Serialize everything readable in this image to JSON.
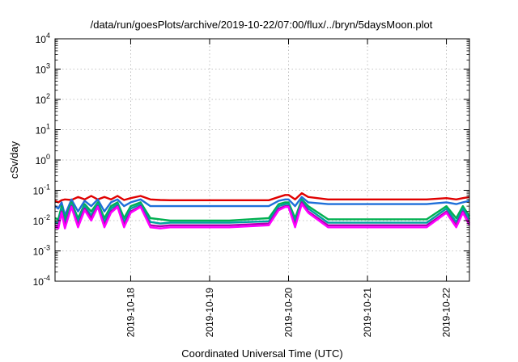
{
  "chart_data": {
    "type": "line",
    "title": "/data/run/goesPlots/archive/2019-10-22/07:00/flux/../bryn/5daysMoon.plot",
    "xlabel": "Coordinated Universal Time (UTC)",
    "ylabel": "cSv/day",
    "yscale": "log",
    "ylim": [
      0.0001,
      10000
    ],
    "xlim": [
      "2019-10-17 01:00",
      "2019-10-22 07:00"
    ],
    "grid": true,
    "y_ticks": [
      {
        "base": "10",
        "exp": "4"
      },
      {
        "base": "10",
        "exp": "3"
      },
      {
        "base": "10",
        "exp": "2"
      },
      {
        "base": "10",
        "exp": "1"
      },
      {
        "base": "10",
        "exp": "0"
      },
      {
        "base": "10",
        "exp": "-1"
      },
      {
        "base": "10",
        "exp": "-2"
      },
      {
        "base": "10",
        "exp": "-3"
      },
      {
        "base": "10",
        "exp": "-4"
      }
    ],
    "x_ticks": [
      "2019-10-18",
      "2019-10-19",
      "2019-10-20",
      "2019-10-21",
      "2019-10-22"
    ],
    "series": [
      {
        "color": "#e00000",
        "x": [
          "2019-10-17 01:00",
          "2019-10-17 02:00",
          "2019-10-17 03:00",
          "2019-10-17 04:00",
          "2019-10-17 06:00",
          "2019-10-17 08:00",
          "2019-10-17 10:00",
          "2019-10-17 12:00",
          "2019-10-17 14:00",
          "2019-10-17 16:00",
          "2019-10-17 18:00",
          "2019-10-17 20:00",
          "2019-10-17 22:00",
          "2019-10-18 00:00",
          "2019-10-18 03:00",
          "2019-10-18 06:00",
          "2019-10-18 09:00",
          "2019-10-18 12:00",
          "2019-10-18 18:00",
          "2019-10-19 00:00",
          "2019-10-19 06:00",
          "2019-10-19 12:00",
          "2019-10-19 18:00",
          "2019-10-19 21:00",
          "2019-10-19 23:00",
          "2019-10-20 00:00",
          "2019-10-20 02:00",
          "2019-10-20 04:00",
          "2019-10-20 06:00",
          "2019-10-20 12:00",
          "2019-10-20 18:00",
          "2019-10-21 00:00",
          "2019-10-21 06:00",
          "2019-10-21 12:00",
          "2019-10-21 18:00",
          "2019-10-22 00:00",
          "2019-10-22 03:00",
          "2019-10-22 05:00",
          "2019-10-22 07:00"
        ],
        "y": [
          0.045,
          0.04,
          0.047,
          0.05,
          0.048,
          0.06,
          0.05,
          0.065,
          0.05,
          0.06,
          0.05,
          0.065,
          0.048,
          0.055,
          0.065,
          0.05,
          0.048,
          0.047,
          0.047,
          0.047,
          0.047,
          0.047,
          0.047,
          0.06,
          0.07,
          0.07,
          0.05,
          0.08,
          0.06,
          0.05,
          0.05,
          0.05,
          0.05,
          0.05,
          0.05,
          0.055,
          0.05,
          0.055,
          0.06
        ]
      },
      {
        "color": "#1e6fd9",
        "x": [
          "2019-10-17 01:00",
          "2019-10-17 02:00",
          "2019-10-17 03:00",
          "2019-10-17 04:00",
          "2019-10-17 06:00",
          "2019-10-17 08:00",
          "2019-10-17 10:00",
          "2019-10-17 12:00",
          "2019-10-17 14:00",
          "2019-10-17 16:00",
          "2019-10-17 18:00",
          "2019-10-17 20:00",
          "2019-10-17 22:00",
          "2019-10-18 00:00",
          "2019-10-18 03:00",
          "2019-10-18 06:00",
          "2019-10-18 09:00",
          "2019-10-18 12:00",
          "2019-10-18 18:00",
          "2019-10-19 00:00",
          "2019-10-19 06:00",
          "2019-10-19 12:00",
          "2019-10-19 18:00",
          "2019-10-19 21:00",
          "2019-10-19 23:00",
          "2019-10-20 00:00",
          "2019-10-20 02:00",
          "2019-10-20 04:00",
          "2019-10-20 06:00",
          "2019-10-20 12:00",
          "2019-10-20 18:00",
          "2019-10-21 00:00",
          "2019-10-21 06:00",
          "2019-10-21 12:00",
          "2019-10-21 18:00",
          "2019-10-22 00:00",
          "2019-10-22 03:00",
          "2019-10-22 05:00",
          "2019-10-22 07:00"
        ],
        "y": [
          0.03,
          0.025,
          0.04,
          0.015,
          0.05,
          0.02,
          0.045,
          0.03,
          0.05,
          0.02,
          0.04,
          0.05,
          0.03,
          0.04,
          0.05,
          0.03,
          0.03,
          0.03,
          0.03,
          0.03,
          0.03,
          0.03,
          0.03,
          0.045,
          0.05,
          0.05,
          0.03,
          0.06,
          0.04,
          0.035,
          0.035,
          0.035,
          0.035,
          0.035,
          0.035,
          0.04,
          0.035,
          0.04,
          0.045
        ]
      },
      {
        "color": "#00b050",
        "x": [
          "2019-10-17 01:00",
          "2019-10-17 02:00",
          "2019-10-17 03:00",
          "2019-10-17 04:00",
          "2019-10-17 06:00",
          "2019-10-17 08:00",
          "2019-10-17 10:00",
          "2019-10-17 12:00",
          "2019-10-17 14:00",
          "2019-10-17 16:00",
          "2019-10-17 18:00",
          "2019-10-17 20:00",
          "2019-10-17 22:00",
          "2019-10-18 00:00",
          "2019-10-18 03:00",
          "2019-10-18 06:00",
          "2019-10-18 09:00",
          "2019-10-18 12:00",
          "2019-10-18 18:00",
          "2019-10-19 00:00",
          "2019-10-19 06:00",
          "2019-10-19 12:00",
          "2019-10-19 18:00",
          "2019-10-19 21:00",
          "2019-10-19 23:00",
          "2019-10-20 00:00",
          "2019-10-20 02:00",
          "2019-10-20 04:00",
          "2019-10-20 06:00",
          "2019-10-20 12:00",
          "2019-10-20 18:00",
          "2019-10-21 00:00",
          "2019-10-21 06:00",
          "2019-10-21 12:00",
          "2019-10-21 18:00",
          "2019-10-22 00:00",
          "2019-10-22 03:00",
          "2019-10-22 05:00",
          "2019-10-22 07:00"
        ],
        "y": [
          0.012,
          0.011,
          0.03,
          0.011,
          0.04,
          0.012,
          0.035,
          0.02,
          0.04,
          0.012,
          0.03,
          0.04,
          0.012,
          0.03,
          0.04,
          0.012,
          0.011,
          0.01,
          0.01,
          0.01,
          0.01,
          0.011,
          0.012,
          0.035,
          0.04,
          0.04,
          0.012,
          0.05,
          0.03,
          0.011,
          0.011,
          0.011,
          0.011,
          0.011,
          0.011,
          0.03,
          0.012,
          0.03,
          0.014
        ]
      },
      {
        "color": "#00a0a0",
        "x": [
          "2019-10-17 01:00",
          "2019-10-17 02:00",
          "2019-10-17 03:00",
          "2019-10-17 04:00",
          "2019-10-17 06:00",
          "2019-10-17 08:00",
          "2019-10-17 10:00",
          "2019-10-17 12:00",
          "2019-10-17 14:00",
          "2019-10-17 16:00",
          "2019-10-17 18:00",
          "2019-10-17 20:00",
          "2019-10-17 22:00",
          "2019-10-18 00:00",
          "2019-10-18 03:00",
          "2019-10-18 06:00",
          "2019-10-18 09:00",
          "2019-10-18 12:00",
          "2019-10-18 18:00",
          "2019-10-19 00:00",
          "2019-10-19 06:00",
          "2019-10-19 12:00",
          "2019-10-19 18:00",
          "2019-10-19 21:00",
          "2019-10-19 23:00",
          "2019-10-20 00:00",
          "2019-10-20 02:00",
          "2019-10-20 04:00",
          "2019-10-20 06:00",
          "2019-10-20 12:00",
          "2019-10-20 18:00",
          "2019-10-21 00:00",
          "2019-10-21 06:00",
          "2019-10-21 12:00",
          "2019-10-21 18:00",
          "2019-10-22 00:00",
          "2019-10-22 03:00",
          "2019-10-22 05:00",
          "2019-10-22 07:00"
        ],
        "y": [
          0.009,
          0.008,
          0.025,
          0.008,
          0.035,
          0.009,
          0.03,
          0.015,
          0.035,
          0.009,
          0.025,
          0.035,
          0.009,
          0.025,
          0.035,
          0.009,
          0.008,
          0.0085,
          0.0085,
          0.0085,
          0.0085,
          0.009,
          0.0095,
          0.03,
          0.035,
          0.035,
          0.009,
          0.045,
          0.025,
          0.0085,
          0.0085,
          0.0085,
          0.0085,
          0.0085,
          0.0085,
          0.025,
          0.009,
          0.025,
          0.011
        ]
      },
      {
        "color": "#b000b0",
        "x": [
          "2019-10-17 01:00",
          "2019-10-17 02:00",
          "2019-10-17 03:00",
          "2019-10-17 04:00",
          "2019-10-17 06:00",
          "2019-10-17 08:00",
          "2019-10-17 10:00",
          "2019-10-17 12:00",
          "2019-10-17 14:00",
          "2019-10-17 16:00",
          "2019-10-17 18:00",
          "2019-10-17 20:00",
          "2019-10-17 22:00",
          "2019-10-18 00:00",
          "2019-10-18 03:00",
          "2019-10-18 06:00",
          "2019-10-18 09:00",
          "2019-10-18 12:00",
          "2019-10-18 18:00",
          "2019-10-19 00:00",
          "2019-10-19 06:00",
          "2019-10-19 12:00",
          "2019-10-19 18:00",
          "2019-10-19 21:00",
          "2019-10-19 23:00",
          "2019-10-20 00:00",
          "2019-10-20 02:00",
          "2019-10-20 04:00",
          "2019-10-20 06:00",
          "2019-10-20 12:00",
          "2019-10-20 18:00",
          "2019-10-21 00:00",
          "2019-10-21 06:00",
          "2019-10-21 12:00",
          "2019-10-21 18:00",
          "2019-10-22 00:00",
          "2019-10-22 03:00",
          "2019-10-22 05:00",
          "2019-10-22 07:00"
        ],
        "y": [
          0.007,
          0.0065,
          0.02,
          0.0065,
          0.03,
          0.007,
          0.025,
          0.012,
          0.03,
          0.007,
          0.02,
          0.03,
          0.007,
          0.02,
          0.03,
          0.007,
          0.0065,
          0.007,
          0.007,
          0.007,
          0.007,
          0.0075,
          0.008,
          0.025,
          0.03,
          0.03,
          0.007,
          0.04,
          0.02,
          0.007,
          0.007,
          0.007,
          0.007,
          0.007,
          0.007,
          0.02,
          0.007,
          0.02,
          0.008
        ]
      },
      {
        "color": "#ff00ff",
        "x": [
          "2019-10-17 01:00",
          "2019-10-17 02:00",
          "2019-10-17 03:00",
          "2019-10-17 04:00",
          "2019-10-17 06:00",
          "2019-10-17 08:00",
          "2019-10-17 10:00",
          "2019-10-17 12:00",
          "2019-10-17 14:00",
          "2019-10-17 16:00",
          "2019-10-17 18:00",
          "2019-10-17 20:00",
          "2019-10-17 22:00",
          "2019-10-18 00:00",
          "2019-10-18 03:00",
          "2019-10-18 06:00",
          "2019-10-18 09:00",
          "2019-10-18 12:00",
          "2019-10-18 18:00",
          "2019-10-19 00:00",
          "2019-10-19 06:00",
          "2019-10-19 12:00",
          "2019-10-19 18:00",
          "2019-10-19 21:00",
          "2019-10-19 23:00",
          "2019-10-20 00:00",
          "2019-10-20 02:00",
          "2019-10-20 04:00",
          "2019-10-20 06:00",
          "2019-10-20 12:00",
          "2019-10-20 18:00",
          "2019-10-21 00:00",
          "2019-10-21 06:00",
          "2019-10-21 12:00",
          "2019-10-21 18:00",
          "2019-10-22 00:00",
          "2019-10-22 03:00",
          "2019-10-22 05:00",
          "2019-10-22 07:00"
        ],
        "y": [
          0.006,
          0.0055,
          0.018,
          0.0055,
          0.028,
          0.006,
          0.022,
          0.01,
          0.028,
          0.006,
          0.018,
          0.028,
          0.006,
          0.018,
          0.028,
          0.006,
          0.0055,
          0.006,
          0.006,
          0.006,
          0.006,
          0.0065,
          0.007,
          0.022,
          0.028,
          0.028,
          0.006,
          0.035,
          0.018,
          0.006,
          0.006,
          0.006,
          0.006,
          0.006,
          0.006,
          0.018,
          0.006,
          0.018,
          0.007
        ]
      }
    ]
  }
}
